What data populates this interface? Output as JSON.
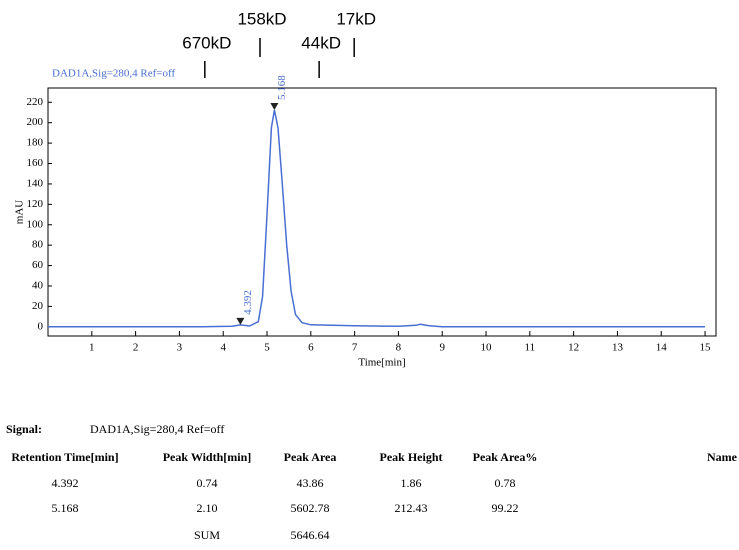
{
  "chart_data": {
    "type": "line",
    "series": [
      {
        "name": "DAD1A,Sig=280,4  Ref=off",
        "color": "#4a6fd4",
        "x": [
          0,
          3.5,
          4.2,
          4.392,
          4.6,
          4.8,
          4.9,
          5.0,
          5.1,
          5.168,
          5.25,
          5.35,
          5.45,
          5.55,
          5.65,
          5.8,
          6.0,
          7.0,
          8.0,
          8.4,
          8.5,
          8.7,
          9.0,
          15.0
        ],
        "values": [
          0,
          0,
          0.5,
          1.86,
          0.8,
          5,
          30,
          110,
          195,
          212.43,
          195,
          140,
          80,
          35,
          12,
          4,
          2,
          1,
          0.5,
          1.5,
          2.5,
          1,
          0,
          0
        ]
      }
    ],
    "xlabel": "Time[min]",
    "ylabel": "mAU",
    "xlim": [
      0,
      15.25
    ],
    "ylim": [
      -9,
      234
    ],
    "xticks": [
      1,
      2,
      3,
      4,
      5,
      6,
      7,
      8,
      9,
      10,
      11,
      12,
      13,
      14,
      15
    ],
    "yticks": [
      0,
      20,
      40,
      60,
      80,
      100,
      120,
      140,
      160,
      180,
      200,
      220
    ],
    "peaks": [
      {
        "x": 4.392,
        "y": 1.86
      },
      {
        "x": 5.168,
        "y": 212.43
      }
    ],
    "markers": [
      {
        "label": "670kD",
        "x": 3.58
      },
      {
        "label": "158kD",
        "x": 4.84
      },
      {
        "label": "44kD",
        "x": 6.19
      },
      {
        "label": "17kD",
        "x": 6.99
      }
    ]
  },
  "table": {
    "signal_label": "Signal:",
    "signal_value": "DAD1A,Sig=280,4  Ref=off",
    "headers": [
      "Retention Time[min]",
      "Peak Width[min]",
      "Peak Area",
      "Peak Height",
      "Peak Area%",
      "Name"
    ],
    "rows": [
      [
        "4.392",
        "0.74",
        "43.86",
        "1.86",
        "0.78"
      ],
      [
        "5.168",
        "2.10",
        "5602.78",
        "212.43",
        "99.22"
      ]
    ],
    "sum_label": "SUM",
    "sum_value": "5646.64"
  }
}
